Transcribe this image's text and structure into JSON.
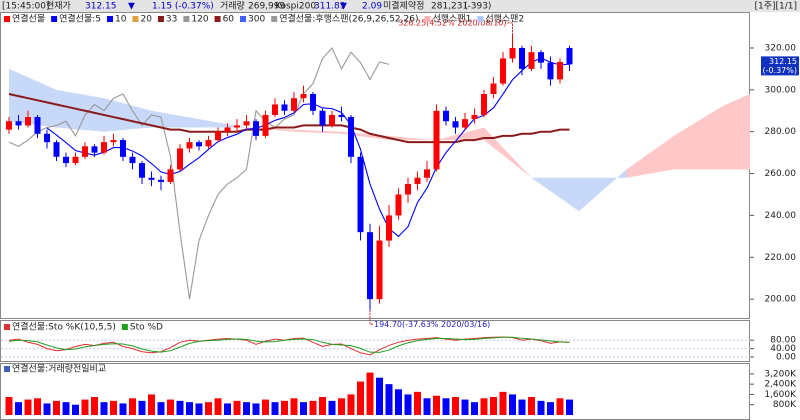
{
  "header": {
    "time": "[15:45:00]",
    "price_label": "현재가",
    "price": "312.15",
    "change_sign": "▼",
    "change": "1.15 (-0.37%)",
    "volume_label": "거래량",
    "volume": "269,999",
    "index_label": "Kospi200",
    "index": "311.83",
    "index_sign": "▼",
    "index_change": "2.09",
    "oi_label": "미결제약정",
    "oi": "281,231",
    "oi_change": "(-393)",
    "pager": "[1주][1/1]"
  },
  "chart_data": [
    {
      "type": "candlestick",
      "legend": [
        {
          "name": "연결선물",
          "color": "#ff0000"
        },
        {
          "name": "연결선물:5",
          "color": "#0000ff"
        },
        {
          "name": "10",
          "color": "#0000ff"
        },
        {
          "name": "20",
          "color": "#e0a040"
        },
        {
          "name": "33",
          "color": "#8b1a1a"
        },
        {
          "name": "120",
          "color": "#999999"
        },
        {
          "name": "60",
          "color": "#8b1a1a"
        },
        {
          "name": "300",
          "color": "#4060ff"
        },
        {
          "name": "연결선물:후행스팬(26,9,26,52,26)",
          "color": "#999999"
        },
        {
          "name": "선행스팬1",
          "color": "#ffb0b0"
        },
        {
          "name": "선행스팬2",
          "color": "#b0c8ff"
        }
      ],
      "up_color": "#ff0000",
      "down_color": "#0000ff",
      "open": [
        281,
        285,
        283,
        287,
        279,
        275,
        268,
        265,
        268,
        273,
        270,
        275,
        276,
        268,
        265,
        258,
        257,
        256,
        262,
        272,
        275,
        273,
        276,
        280,
        282,
        283,
        285,
        278,
        288,
        293,
        290,
        296,
        298,
        290,
        283,
        288,
        287,
        268,
        232,
        200,
        228,
        240,
        250,
        255,
        258,
        262,
        290,
        285,
        282,
        286,
        288,
        298,
        303,
        315,
        320,
        310,
        318,
        313,
        305,
        320
      ],
      "high": [
        287,
        288,
        290,
        288,
        281,
        276,
        270,
        270,
        275,
        274,
        278,
        279,
        277,
        270,
        266,
        261,
        259,
        264,
        274,
        277,
        276,
        278,
        282,
        284,
        286,
        288,
        286,
        290,
        296,
        295,
        299,
        302,
        299,
        291,
        290,
        292,
        288,
        270,
        236,
        235,
        245,
        253,
        258,
        261,
        266,
        293,
        292,
        287,
        289,
        291,
        300,
        306,
        318,
        326.25,
        321,
        321,
        319,
        316,
        315,
        321
      ],
      "low": [
        279,
        281,
        282,
        277,
        272,
        266,
        263,
        264,
        267,
        268,
        269,
        273,
        266,
        262,
        255,
        254,
        252,
        255,
        261,
        270,
        271,
        272,
        275,
        278,
        280,
        281,
        276,
        277,
        287,
        288,
        289,
        294,
        288,
        280,
        282,
        285,
        265,
        228,
        194.7,
        198,
        225,
        238,
        246,
        252,
        256,
        261,
        283,
        279,
        281,
        284,
        287,
        296,
        302,
        313,
        307,
        309,
        310,
        302,
        303,
        309
      ],
      "close": [
        285,
        283,
        287,
        279,
        275,
        268,
        265,
        268,
        273,
        270,
        275,
        276,
        268,
        265,
        258,
        257,
        256,
        262,
        272,
        275,
        273,
        276,
        280,
        282,
        283,
        285,
        278,
        288,
        293,
        290,
        296,
        298,
        290,
        283,
        288,
        287,
        268,
        232,
        200,
        228,
        240,
        250,
        255,
        258,
        262,
        290,
        285,
        282,
        286,
        288,
        298,
        303,
        315,
        320,
        310,
        318,
        313,
        305,
        313.3,
        312.15
      ],
      "lines": [
        {
          "color": "#999999",
          "values": [
            275,
            273,
            276,
            280,
            282,
            283,
            285,
            278,
            288,
            293,
            290,
            296,
            298,
            290,
            283,
            288,
            287,
            268,
            232,
            200,
            228,
            240,
            250,
            255,
            258,
            262,
            290,
            285,
            282,
            286,
            288,
            298,
            303,
            315,
            320,
            310,
            318,
            313,
            305,
            313.3,
            312.15,
            null,
            null,
            null,
            null,
            null,
            null,
            null,
            null,
            null,
            null,
            null,
            null,
            null,
            null,
            null,
            null,
            null,
            null,
            null
          ]
        },
        {
          "color": "#8b1a1a",
          "values": [
            298,
            297,
            296,
            295,
            294,
            293,
            292,
            291,
            290,
            289,
            288,
            287,
            286,
            285,
            284,
            283,
            282,
            281,
            281,
            280,
            280,
            280,
            280,
            280,
            280,
            281,
            281,
            281,
            282,
            282,
            282,
            283,
            283,
            283,
            283,
            283,
            282,
            281,
            279,
            278,
            277,
            276,
            275,
            275,
            275,
            275,
            275,
            275,
            276,
            276,
            277,
            277,
            278,
            278,
            279,
            279,
            280,
            280,
            281,
            281
          ]
        },
        {
          "color": "#0000ff",
          "values": [
            null,
            null,
            null,
            null,
            281.8,
            278.4,
            274.8,
            271,
            269.8,
            268.8,
            270.2,
            272.4,
            272.4,
            270.8,
            268.4,
            264.8,
            260.8,
            259.6,
            261,
            264.4,
            267.6,
            271.6,
            275.2,
            277.2,
            278.8,
            281.2,
            281.6,
            283.2,
            285.4,
            286.8,
            289,
            293,
            293.4,
            291.4,
            291,
            289.2,
            283.2,
            271.6,
            255,
            243,
            233.6,
            230,
            234.6,
            246.2,
            253,
            263,
            270,
            275.4,
            281,
            286.2,
            287.8,
            291.4,
            298,
            304.8,
            309.2,
            313.2,
            315.2,
            313.2,
            311.86,
            312.29
          ]
        }
      ],
      "cloud": {
        "up_color": "#ffc8c8",
        "down_color": "#c8d8f8",
        "x": [
          0,
          5,
          10,
          15,
          20,
          25,
          30,
          35,
          40,
          45,
          50,
          55,
          60,
          65,
          70,
          75,
          78
        ],
        "span1": [
          285,
          282,
          280,
          282,
          282,
          282,
          281,
          280,
          278,
          276,
          282,
          258,
          242,
          262,
          278,
          292,
          298
        ],
        "span2": [
          310,
          300,
          296,
          290,
          286,
          282,
          280,
          279,
          276,
          276,
          276,
          258,
          258,
          258,
          262,
          262,
          262
        ]
      },
      "annotations": [
        {
          "text": "326.25(4.52% 2020/08/10)",
          "x": 53,
          "y": 326.25
        },
        {
          "text": "194.70(-37.63% 2020/03/16)",
          "x": 38,
          "y": 194.7
        }
      ],
      "price_tag": [
        "312.15",
        "(-0.37%)"
      ],
      "ylim": [
        191,
        336.7
      ],
      "yticks": [
        {
          "value": 200,
          "label": "200.00"
        },
        {
          "value": 220,
          "label": "220.00"
        },
        {
          "value": 240,
          "label": "240.00"
        },
        {
          "value": 260,
          "label": "260.00"
        },
        {
          "value": 280,
          "label": "280.00"
        },
        {
          "value": 300,
          "label": "300.00"
        },
        {
          "value": 320,
          "label": "320.00"
        }
      ]
    },
    {
      "type": "line",
      "series": [
        {
          "name": "연결선물:Sto %K(10,5,5)",
          "color": "#e03030",
          "values": [
            80,
            85,
            70,
            60,
            40,
            30,
            35,
            50,
            60,
            55,
            65,
            70,
            50,
            40,
            25,
            20,
            25,
            45,
            70,
            80,
            75,
            80,
            85,
            88,
            85,
            80,
            60,
            75,
            85,
            80,
            88,
            90,
            70,
            50,
            60,
            62,
            40,
            20,
            10,
            35,
            55,
            70,
            80,
            85,
            88,
            92,
            85,
            80,
            85,
            88,
            92,
            94,
            95,
            93,
            80,
            85,
            78,
            65,
            72,
            70
          ]
        },
        {
          "name": "Sto %D",
          "color": "#20a020",
          "values": [
            75,
            80,
            78,
            72,
            57,
            43,
            35,
            38,
            48,
            55,
            60,
            63,
            62,
            53,
            38,
            28,
            23,
            30,
            47,
            65,
            75,
            78,
            80,
            84,
            86,
            84,
            75,
            72,
            73,
            80,
            84,
            86,
            83,
            70,
            60,
            57,
            54,
            41,
            23,
            22,
            33,
            53,
            68,
            78,
            84,
            88,
            88,
            86,
            83,
            84,
            88,
            91,
            94,
            94,
            89,
            86,
            81,
            76,
            72,
            69
          ]
        }
      ],
      "ylim": [
        0,
        100
      ],
      "yticks": [
        {
          "value": 0,
          "label": "0.00"
        },
        {
          "value": 40,
          "label": "40.00"
        },
        {
          "value": 80,
          "label": "80.00"
        }
      ]
    },
    {
      "type": "bar",
      "up_color": "#ff0000",
      "down_color": "#0000ff",
      "series": [
        {
          "name": "연결선물:거래량전일비교",
          "values": [
            1400000,
            1000000,
            1200000,
            1300000,
            900000,
            1100000,
            1000000,
            800000,
            1200000,
            1400000,
            1000000,
            1100000,
            900000,
            1300000,
            1100000,
            1600000,
            1000000,
            1200000,
            1100000,
            1000000,
            900000,
            1000000,
            1300000,
            900000,
            1100000,
            1000000,
            900000,
            1200000,
            1000000,
            1100000,
            1300000,
            1000000,
            1100000,
            1400000,
            1100000,
            1300000,
            1600000,
            2600000,
            3300000,
            2900000,
            2400000,
            2000000,
            1600000,
            1800000,
            1300000,
            1500000,
            1300000,
            1400000,
            1200000,
            1000000,
            1300000,
            1400000,
            1800000,
            1600000,
            1200000,
            1400000,
            1100000,
            1000000,
            1300000,
            1200000
          ]
        }
      ],
      "ylim": [
        0,
        4200000
      ],
      "yticks": [
        {
          "value": 800000,
          "label": "800K"
        },
        {
          "value": 1600000,
          "label": "1,600K"
        },
        {
          "value": 2400000,
          "label": "2,400K"
        },
        {
          "value": 3200000,
          "label": "3,200K"
        }
      ]
    }
  ]
}
